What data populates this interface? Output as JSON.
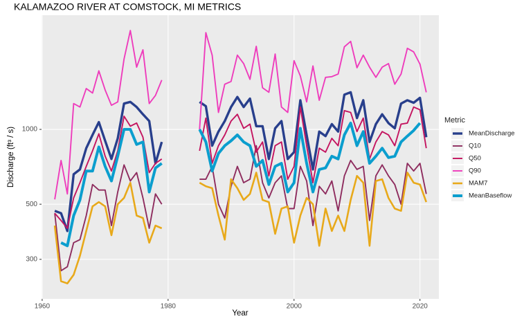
{
  "chart_data": {
    "type": "line",
    "title": "KALAMAZOO RIVER AT COMSTOCK, MI  METRICS",
    "x_label": "Year",
    "y_label": "Discharge (ft³ / s)",
    "legend_title": "Metric",
    "x": [
      1962,
      1963,
      1964,
      1965,
      1966,
      1967,
      1968,
      1969,
      1970,
      1971,
      1972,
      1973,
      1974,
      1975,
      1976,
      1977,
      1978,
      1979,
      1980,
      1981,
      1982,
      1983,
      1984,
      1985,
      1986,
      1987,
      1988,
      1989,
      1990,
      1991,
      1992,
      1993,
      1994,
      1995,
      1996,
      1997,
      1998,
      1999,
      2000,
      2001,
      2002,
      2003,
      2004,
      2005,
      2006,
      2007,
      2008,
      2009,
      2010,
      2011,
      2012,
      2013,
      2014,
      2015,
      2016,
      2017,
      2018,
      2019,
      2020,
      2021
    ],
    "series": [
      {
        "name": "MeanDischarge",
        "color": "#283f8c",
        "values": [
          470,
          460,
          390,
          660,
          690,
          840,
          950,
          1070,
          900,
          760,
          920,
          1270,
          1290,
          1230,
          1150,
          1080,
          730,
          890,
          null,
          null,
          null,
          null,
          null,
          1290,
          1240,
          860,
          980,
          1080,
          1230,
          1350,
          1230,
          1330,
          1030,
          1030,
          760,
          1010,
          1080,
          760,
          810,
          1310,
          950,
          690,
          980,
          940,
          1050,
          980,
          1380,
          1410,
          1110,
          1310,
          890,
          1050,
          1150,
          1060,
          1010,
          1270,
          1310,
          1280,
          1340,
          930
        ]
      },
      {
        "name": "Q10",
        "color": "#8e2c5e",
        "values": [
          460,
          270,
          280,
          350,
          360,
          450,
          600,
          570,
          570,
          410,
          560,
          720,
          620,
          670,
          530,
          400,
          550,
          500,
          null,
          null,
          null,
          null,
          null,
          630,
          630,
          710,
          500,
          440,
          590,
          710,
          610,
          630,
          860,
          610,
          530,
          610,
          650,
          480,
          480,
          710,
          620,
          410,
          590,
          550,
          620,
          470,
          650,
          750,
          690,
          710,
          430,
          650,
          720,
          650,
          600,
          500,
          730,
          680,
          730,
          550
        ]
      },
      {
        "name": "Q50",
        "color": "#c4145f",
        "values": [
          460,
          430,
          400,
          530,
          610,
          710,
          820,
          960,
          780,
          680,
          820,
          1130,
          1030,
          1060,
          930,
          670,
          730,
          760,
          null,
          null,
          null,
          null,
          null,
          820,
          1110,
          730,
          860,
          950,
          1080,
          1150,
          1010,
          1050,
          810,
          890,
          650,
          860,
          890,
          630,
          710,
          1230,
          860,
          610,
          840,
          810,
          920,
          860,
          1190,
          1170,
          980,
          1110,
          760,
          890,
          980,
          950,
          860,
          1050,
          1060,
          1230,
          1200,
          840
        ]
      },
      {
        "name": "Q90",
        "color": "#ee3cbc",
        "values": [
          523,
          750,
          550,
          1270,
          1230,
          1460,
          1400,
          1720,
          1440,
          1250,
          1290,
          1920,
          2500,
          1780,
          2090,
          1270,
          1370,
          1580,
          null,
          null,
          null,
          null,
          null,
          1000,
          2450,
          1990,
          1170,
          1520,
          1560,
          1990,
          1840,
          1590,
          2160,
          1470,
          1410,
          2010,
          1230,
          1170,
          1890,
          1640,
          1290,
          1800,
          1310,
          1620,
          1630,
          1670,
          2150,
          2260,
          1770,
          1990,
          1780,
          1620,
          1780,
          1840,
          1520,
          1670,
          2120,
          2050,
          1830,
          1410
        ]
      },
      {
        "name": "MAM7",
        "color": "#e8a91a",
        "values": [
          410,
          245,
          240,
          260,
          310,
          390,
          490,
          510,
          490,
          375,
          500,
          530,
          610,
          450,
          440,
          350,
          410,
          400,
          null,
          null,
          null,
          null,
          null,
          610,
          590,
          580,
          450,
          360,
          630,
          580,
          520,
          550,
          670,
          520,
          510,
          380,
          480,
          490,
          350,
          450,
          530,
          500,
          340,
          480,
          390,
          450,
          390,
          520,
          650,
          610,
          340,
          620,
          630,
          530,
          480,
          470,
          670,
          610,
          600,
          510
        ]
      },
      {
        "name": "MeanBaseflow",
        "color": "#0b9ece",
        "values": [
          null,
          350,
          340,
          450,
          520,
          680,
          680,
          850,
          710,
          620,
          780,
          1000,
          1000,
          870,
          890,
          560,
          700,
          730,
          null,
          null,
          null,
          null,
          null,
          1000,
          890,
          680,
          800,
          860,
          900,
          950,
          890,
          860,
          710,
          750,
          600,
          710,
          730,
          560,
          610,
          1010,
          730,
          560,
          690,
          700,
          780,
          760,
          950,
          1060,
          860,
          980,
          730,
          780,
          840,
          770,
          780,
          890,
          940,
          990,
          1060,
          null
        ]
      }
    ],
    "xlim": [
      1959.9,
      2023
    ],
    "xticks": [
      1960,
      1980,
      2000,
      2020
    ],
    "ylim": [
      208,
      2880
    ],
    "yticks": [
      300,
      500,
      1000
    ],
    "y_log": true,
    "grid": true
  }
}
